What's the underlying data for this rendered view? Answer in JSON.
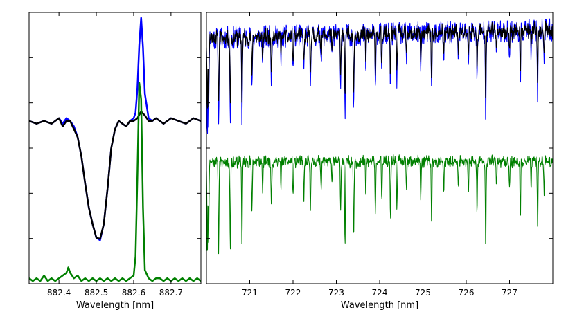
{
  "chart_data": [
    {
      "type": "line",
      "xlabel": "Wavelength [nm]",
      "ylabel": "",
      "xlim": [
        882.32,
        882.78
      ],
      "ylim": [
        0.0,
        1.0
      ],
      "xticks": [
        882.4,
        882.5,
        882.6,
        882.7
      ],
      "xtick_labels": [
        "882.4",
        "882.5",
        "882.6",
        "882.7"
      ],
      "grid": false,
      "series": [
        {
          "color": "#0000ff",
          "x": [
            882.32,
            882.34,
            882.36,
            882.38,
            882.4,
            882.41,
            882.42,
            882.43,
            882.44,
            882.45,
            882.46,
            882.47,
            882.48,
            882.49,
            882.5,
            882.51,
            882.52,
            882.53,
            882.54,
            882.55,
            882.56,
            882.57,
            882.58,
            882.59,
            882.6,
            882.605,
            882.61,
            882.615,
            882.62,
            882.625,
            882.63,
            882.64,
            882.65,
            882.66,
            882.67,
            882.68,
            882.7,
            882.72,
            882.74,
            882.76,
            882.78
          ],
          "y": [
            0.6,
            0.59,
            0.6,
            0.59,
            0.61,
            0.59,
            0.61,
            0.6,
            0.58,
            0.54,
            0.47,
            0.37,
            0.28,
            0.22,
            0.17,
            0.16,
            0.22,
            0.35,
            0.5,
            0.57,
            0.6,
            0.59,
            0.58,
            0.6,
            0.61,
            0.63,
            0.72,
            0.88,
            0.98,
            0.87,
            0.7,
            0.61,
            0.6,
            0.61,
            0.6,
            0.59,
            0.61,
            0.6,
            0.59,
            0.61,
            0.6
          ]
        },
        {
          "color": "#000000",
          "x": [
            882.32,
            882.34,
            882.36,
            882.38,
            882.4,
            882.41,
            882.42,
            882.43,
            882.44,
            882.45,
            882.46,
            882.47,
            882.48,
            882.49,
            882.5,
            882.51,
            882.52,
            882.53,
            882.54,
            882.55,
            882.56,
            882.57,
            882.58,
            882.59,
            882.6,
            882.61,
            882.62,
            882.63,
            882.64,
            882.65,
            882.66,
            882.67,
            882.68,
            882.7,
            882.72,
            882.74,
            882.76,
            882.78
          ],
          "y": [
            0.6,
            0.59,
            0.6,
            0.59,
            0.61,
            0.58,
            0.6,
            0.6,
            0.57,
            0.54,
            0.47,
            0.37,
            0.28,
            0.22,
            0.17,
            0.165,
            0.22,
            0.35,
            0.5,
            0.57,
            0.6,
            0.59,
            0.58,
            0.6,
            0.6,
            0.61,
            0.635,
            0.62,
            0.6,
            0.6,
            0.61,
            0.6,
            0.59,
            0.61,
            0.6,
            0.59,
            0.61,
            0.6
          ]
        },
        {
          "color": "#008000",
          "x": [
            882.32,
            882.33,
            882.34,
            882.35,
            882.36,
            882.37,
            882.38,
            882.39,
            882.4,
            882.41,
            882.42,
            882.425,
            882.43,
            882.44,
            882.45,
            882.46,
            882.47,
            882.48,
            882.49,
            882.5,
            882.51,
            882.52,
            882.53,
            882.54,
            882.55,
            882.56,
            882.57,
            882.58,
            882.59,
            882.6,
            882.605,
            882.61,
            882.615,
            882.62,
            882.625,
            882.63,
            882.64,
            882.65,
            882.66,
            882.67,
            882.68,
            882.69,
            882.7,
            882.71,
            882.72,
            882.73,
            882.74,
            882.75,
            882.76,
            882.77,
            882.78
          ],
          "y": [
            0.02,
            0.01,
            0.02,
            0.01,
            0.03,
            0.01,
            0.02,
            0.01,
            0.02,
            0.03,
            0.04,
            0.06,
            0.04,
            0.02,
            0.03,
            0.01,
            0.02,
            0.01,
            0.02,
            0.01,
            0.02,
            0.01,
            0.02,
            0.01,
            0.02,
            0.01,
            0.02,
            0.01,
            0.02,
            0.03,
            0.1,
            0.4,
            0.74,
            0.68,
            0.28,
            0.05,
            0.02,
            0.01,
            0.02,
            0.02,
            0.01,
            0.02,
            0.01,
            0.02,
            0.01,
            0.02,
            0.01,
            0.02,
            0.01,
            0.02,
            0.01
          ]
        }
      ]
    },
    {
      "type": "line",
      "xlabel": "Wavelength [nm]",
      "ylabel": "",
      "xlim": [
        720.0,
        728.0
      ],
      "ylim": [
        0.0,
        1.0
      ],
      "xticks": [
        721,
        722,
        723,
        724,
        725,
        726,
        727
      ],
      "xtick_labels": [
        "721",
        "722",
        "723",
        "724",
        "725",
        "726",
        "727"
      ],
      "grid": false,
      "series": [
        {
          "name": "",
          "color": "#0000ff",
          "baseline": 0.905,
          "noise": 0.035,
          "trend": 0.03,
          "depth_scale": 1.0
        },
        {
          "name": "",
          "color": "#000000",
          "baseline": 0.905,
          "noise": 0.03,
          "trend": 0.03,
          "depth_scale": 0.75
        },
        {
          "name": "",
          "color": "#008000",
          "baseline": 0.45,
          "noise": 0.022,
          "trend": 0.0,
          "depth_scale": 1.0
        }
      ],
      "absorption_lines": [
        {
          "x": 720.02,
          "depth": 0.35
        },
        {
          "x": 720.05,
          "depth": 0.3
        },
        {
          "x": 720.28,
          "depth": 0.34
        },
        {
          "x": 720.55,
          "depth": 0.33
        },
        {
          "x": 720.82,
          "depth": 0.31
        },
        {
          "x": 721.05,
          "depth": 0.2
        },
        {
          "x": 721.3,
          "depth": 0.12
        },
        {
          "x": 721.5,
          "depth": 0.16
        },
        {
          "x": 721.72,
          "depth": 0.1
        },
        {
          "x": 722.0,
          "depth": 0.14
        },
        {
          "x": 722.25,
          "depth": 0.15
        },
        {
          "x": 722.4,
          "depth": 0.2
        },
        {
          "x": 722.65,
          "depth": 0.1
        },
        {
          "x": 722.9,
          "depth": 0.1
        },
        {
          "x": 723.1,
          "depth": 0.17
        },
        {
          "x": 723.2,
          "depth": 0.32
        },
        {
          "x": 723.4,
          "depth": 0.3
        },
        {
          "x": 723.68,
          "depth": 0.12
        },
        {
          "x": 723.9,
          "depth": 0.2
        },
        {
          "x": 724.05,
          "depth": 0.16
        },
        {
          "x": 724.25,
          "depth": 0.22
        },
        {
          "x": 724.4,
          "depth": 0.18
        },
        {
          "x": 724.62,
          "depth": 0.1
        },
        {
          "x": 724.95,
          "depth": 0.14
        },
        {
          "x": 725.2,
          "depth": 0.24
        },
        {
          "x": 725.48,
          "depth": 0.12
        },
        {
          "x": 725.82,
          "depth": 0.1
        },
        {
          "x": 726.05,
          "depth": 0.12
        },
        {
          "x": 726.25,
          "depth": 0.2
        },
        {
          "x": 726.45,
          "depth": 0.31
        },
        {
          "x": 726.7,
          "depth": 0.1
        },
        {
          "x": 727.0,
          "depth": 0.09
        },
        {
          "x": 727.25,
          "depth": 0.23
        },
        {
          "x": 727.5,
          "depth": 0.1
        },
        {
          "x": 727.65,
          "depth": 0.24
        },
        {
          "x": 727.8,
          "depth": 0.12
        }
      ]
    }
  ]
}
